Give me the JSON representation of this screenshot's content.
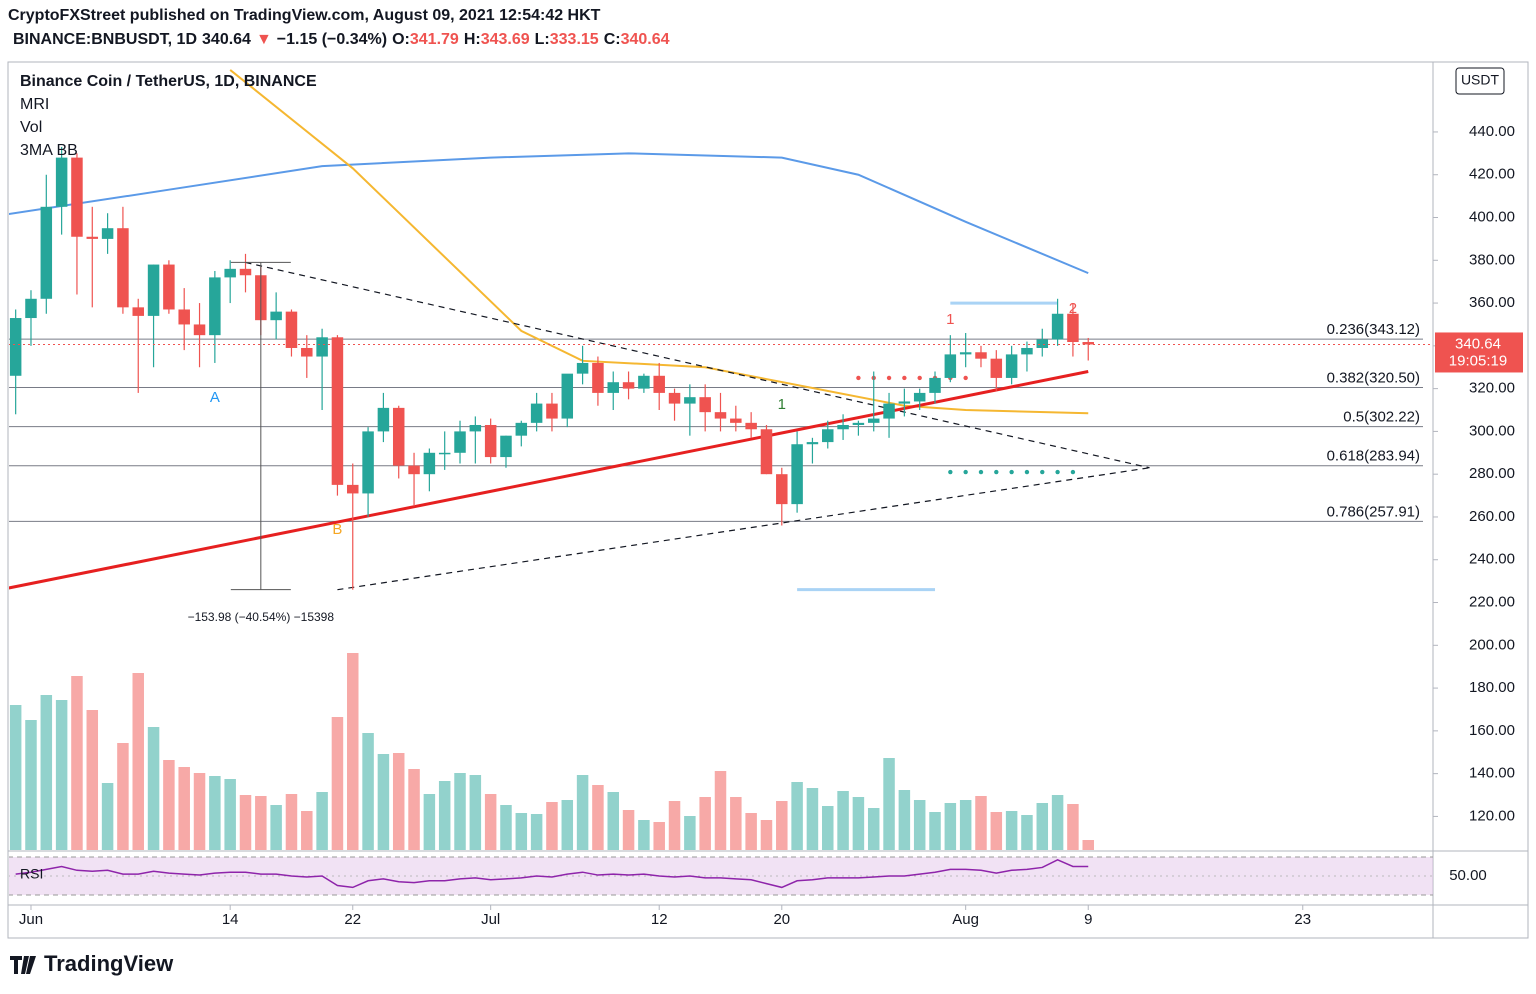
{
  "header": {
    "publisher": "CryptoFXStreet published on TradingView.com, August 09, 2021 12:54:42 HKT",
    "symbol": "BINANCE:BNBUSDT, 1D",
    "price": "340.64",
    "arrow": "▼",
    "change": "−1.15 (−0.34%)",
    "ohlc": [
      {
        "label": "O:",
        "value": "341.79"
      },
      {
        "label": "H:",
        "value": "343.69"
      },
      {
        "label": "L:",
        "value": "333.15"
      },
      {
        "label": "C:",
        "value": "340.64"
      }
    ]
  },
  "legend": [
    "Binance Coin / TetherUS, 1D, BINANCE",
    "MRI",
    "Vol",
    "3MA BB"
  ],
  "currency": "USDT",
  "last_price": {
    "value": 340.64,
    "label": "340.64",
    "countdown": "19:05:19"
  },
  "brand": "TradingView",
  "chart_data": {
    "type": "candlestick",
    "x": [
      "2021-05-31",
      "2021-06-01",
      "2021-06-02",
      "2021-06-03",
      "2021-06-04",
      "2021-06-05",
      "2021-06-06",
      "2021-06-07",
      "2021-06-08",
      "2021-06-09",
      "2021-06-10",
      "2021-06-11",
      "2021-06-12",
      "2021-06-13",
      "2021-06-14",
      "2021-06-15",
      "2021-06-16",
      "2021-06-17",
      "2021-06-18",
      "2021-06-19",
      "2021-06-20",
      "2021-06-21",
      "2021-06-22",
      "2021-06-23",
      "2021-06-24",
      "2021-06-25",
      "2021-06-26",
      "2021-06-27",
      "2021-06-28",
      "2021-06-29",
      "2021-06-30",
      "2021-07-01",
      "2021-07-02",
      "2021-07-03",
      "2021-07-04",
      "2021-07-05",
      "2021-07-06",
      "2021-07-07",
      "2021-07-08",
      "2021-07-09",
      "2021-07-10",
      "2021-07-11",
      "2021-07-12",
      "2021-07-13",
      "2021-07-14",
      "2021-07-15",
      "2021-07-16",
      "2021-07-17",
      "2021-07-18",
      "2021-07-19",
      "2021-07-20",
      "2021-07-21",
      "2021-07-22",
      "2021-07-23",
      "2021-07-24",
      "2021-07-25",
      "2021-07-26",
      "2021-07-27",
      "2021-07-28",
      "2021-07-29",
      "2021-07-30",
      "2021-07-31",
      "2021-08-01",
      "2021-08-02",
      "2021-08-03",
      "2021-08-04",
      "2021-08-05",
      "2021-08-06",
      "2021-08-07",
      "2021-08-08",
      "2021-08-09"
    ],
    "open": [
      326,
      353,
      362,
      405,
      428,
      391,
      390,
      395,
      358,
      354,
      378,
      357,
      350,
      345,
      372,
      376,
      373,
      352,
      356,
      339,
      335,
      344,
      275,
      271,
      300,
      311,
      284,
      280,
      290,
      290,
      300,
      303,
      288,
      298,
      304,
      313,
      306,
      327,
      332,
      318,
      323,
      320,
      326,
      318,
      313,
      316,
      309,
      306,
      304,
      301,
      280,
      266,
      294,
      295,
      301,
      303,
      304,
      306,
      313,
      314,
      318,
      325,
      336,
      337,
      334,
      325,
      336,
      339,
      343,
      355,
      341.79
    ],
    "high": [
      357,
      366,
      420,
      433,
      430,
      405,
      402,
      405,
      362,
      378,
      380,
      367,
      360,
      375,
      380,
      383,
      377,
      365,
      357,
      345,
      348,
      345,
      285,
      302,
      318,
      312,
      290,
      292,
      300,
      305,
      307,
      306,
      298,
      305,
      318,
      318,
      325,
      340,
      335,
      328,
      328,
      327,
      332,
      320,
      322,
      322,
      318,
      312,
      309,
      303,
      283,
      300,
      297,
      305,
      308,
      305,
      328,
      318,
      320,
      320,
      328,
      345,
      346,
      340,
      338,
      340,
      342,
      348,
      362,
      360,
      343.69
    ],
    "low": [
      308,
      340,
      355,
      392,
      364,
      358,
      383,
      355,
      318,
      330,
      355,
      338,
      330,
      332,
      360,
      365,
      345,
      343,
      335,
      325,
      310,
      270,
      226,
      260,
      295,
      278,
      265,
      272,
      282,
      285,
      285,
      285,
      283,
      293,
      300,
      300,
      302,
      322,
      312,
      310,
      315,
      318,
      310,
      305,
      298,
      300,
      300,
      300,
      297,
      280,
      256,
      262,
      285,
      292,
      296,
      298,
      300,
      297,
      307,
      310,
      313,
      323,
      330,
      330,
      319,
      322,
      328,
      335,
      340,
      335,
      333.15
    ],
    "close": [
      353,
      362,
      405,
      428,
      391,
      390,
      395,
      358,
      354,
      378,
      357,
      350,
      345,
      372,
      376,
      373,
      352,
      356,
      339,
      335,
      344,
      275,
      271,
      300,
      311,
      284,
      280,
      290,
      290,
      300,
      303,
      288,
      298,
      304,
      313,
      306,
      327,
      332,
      318,
      323,
      320,
      326,
      318,
      313,
      316,
      309,
      306,
      304,
      301,
      280,
      266,
      294,
      295,
      301,
      303,
      304,
      306,
      313,
      314,
      318,
      325,
      336,
      337,
      334,
      325,
      336,
      339,
      343,
      355,
      341.79,
      340.64
    ],
    "volume": [
      145,
      130,
      155,
      150,
      174,
      140,
      67,
      107,
      177,
      123,
      90,
      83,
      77,
      74,
      71,
      55,
      54,
      45,
      56,
      39,
      58,
      133,
      197,
      117,
      96,
      97,
      81,
      56,
      69,
      77,
      75,
      56,
      45,
      37,
      36,
      48,
      50,
      75,
      65,
      58,
      40,
      30,
      28,
      49,
      34,
      53,
      79,
      53,
      37,
      30,
      49,
      68,
      62,
      44,
      59,
      53,
      42,
      92,
      60,
      50,
      38,
      47,
      50,
      54,
      38,
      39,
      35,
      47,
      55,
      46,
      10
    ],
    "rsi": [
      52,
      54,
      57,
      60,
      56,
      55,
      56,
      52,
      52,
      55,
      53,
      52,
      51,
      53,
      54,
      54,
      52,
      52,
      50,
      49,
      50,
      40,
      38,
      45,
      47,
      44,
      43,
      45,
      45,
      47,
      48,
      46,
      47,
      48,
      50,
      49,
      52,
      54,
      51,
      52,
      51,
      52,
      50,
      49,
      50,
      48,
      48,
      47,
      46,
      42,
      38,
      45,
      46,
      48,
      48,
      48,
      49,
      50,
      50,
      52,
      54,
      57,
      57,
      56,
      53,
      56,
      57,
      59,
      67,
      60,
      60
    ],
    "ma_blue": {
      "color": "#5b9ae8",
      "x": [
        "2021-05-30",
        "2021-06-10",
        "2021-06-20",
        "2021-07-01",
        "2021-07-10",
        "2021-07-20",
        "2021-07-25",
        "2021-08-01",
        "2021-08-09"
      ],
      "values": [
        401,
        413,
        424,
        428,
        430,
        428,
        420,
        398,
        374
      ]
    },
    "ma_yellow": {
      "color": "#f5b731",
      "x": [
        "2021-06-14",
        "2021-06-22",
        "2021-07-03",
        "2021-07-07",
        "2021-07-15",
        "2021-07-28",
        "2021-08-01",
        "2021-08-09"
      ],
      "values": [
        469,
        423,
        347,
        333,
        330,
        312,
        310,
        308.5
      ]
    },
    "trendline": {
      "color": "#e62020",
      "x": [
        "2021-05-30",
        "2021-08-09"
      ],
      "values": [
        226,
        328
      ]
    },
    "dashed": [
      {
        "x": [
          "2021-06-15",
          "2021-08-13"
        ],
        "values": [
          379,
          283
        ]
      },
      {
        "x": [
          "2021-06-21",
          "2021-08-13"
        ],
        "values": [
          226,
          283
        ]
      }
    ],
    "fib": [
      {
        "value": 343.12,
        "label": "0.236(343.12)"
      },
      {
        "value": 320.5,
        "label": "0.382(320.50)"
      },
      {
        "value": 302.22,
        "label": "0.5(302.22)"
      },
      {
        "value": 283.94,
        "label": "0.618(283.94)"
      },
      {
        "value": 257.91,
        "label": "0.786(257.91)"
      }
    ],
    "levels": [
      {
        "x": [
          "2021-07-31",
          "2021-08-07"
        ],
        "value": 360
      },
      {
        "x": [
          "2021-07-21",
          "2021-07-30"
        ],
        "value": 226
      }
    ],
    "dots": [
      {
        "color": "#ef5350",
        "x": [
          "2021-07-25",
          "2021-08-01"
        ],
        "value": 325
      },
      {
        "color": "#26a69a",
        "x": [
          "2021-07-31",
          "2021-08-08"
        ],
        "value": 281
      }
    ],
    "markers": [
      {
        "text": "A",
        "x": "2021-06-13",
        "color": "#2196f3"
      },
      {
        "text": "B",
        "x": "2021-06-21",
        "color": "#f5a623"
      },
      {
        "text": "1",
        "x": "2021-07-20",
        "color": "#2e7d32"
      },
      {
        "text": "1",
        "x": "2021-07-31",
        "color": "#ef5350"
      },
      {
        "text": "2",
        "x": "2021-08-08",
        "color": "#ef5350"
      }
    ],
    "measure": {
      "x": "2021-06-16",
      "from": 379,
      "to": 226,
      "label": "−153.98 (−40.54%) −15398"
    },
    "xlim": [
      "2021-05-30T12:00",
      "2021-08-31T12:00"
    ],
    "xticks": [
      {
        "value": "2021-06-01",
        "label": "Jun"
      },
      {
        "value": "2021-06-14",
        "label": "14"
      },
      {
        "value": "2021-06-22",
        "label": "22"
      },
      {
        "value": "2021-07-01",
        "label": "Jul"
      },
      {
        "value": "2021-07-12",
        "label": "12"
      },
      {
        "value": "2021-07-20",
        "label": "20"
      },
      {
        "value": "2021-08-01",
        "label": "Aug"
      },
      {
        "value": "2021-08-09",
        "label": "9"
      },
      {
        "value": "2021-08-23",
        "label": "23"
      }
    ],
    "ylim": [
      104.3,
      472.7
    ],
    "yticks": [
      {
        "value": 120,
        "label": "120.00"
      },
      {
        "value": 140,
        "label": "140.00"
      },
      {
        "value": 160,
        "label": "160.00"
      },
      {
        "value": 180,
        "label": "180.00"
      },
      {
        "value": 200,
        "label": "200.00"
      },
      {
        "value": 220,
        "label": "220.00"
      },
      {
        "value": 240,
        "label": "240.00"
      },
      {
        "value": 260,
        "label": "260.00"
      },
      {
        "value": 280,
        "label": "280.00"
      },
      {
        "value": 300,
        "label": "300.00"
      },
      {
        "value": 320,
        "label": "320.00"
      },
      {
        "value": 340,
        "label": "340.00"
      },
      {
        "value": 360,
        "label": "360.00"
      },
      {
        "value": 380,
        "label": "380.00"
      },
      {
        "value": 400,
        "label": "400.00"
      },
      {
        "value": 420,
        "label": "420.00"
      },
      {
        "value": 440,
        "label": "440.00"
      }
    ],
    "rsi_label": "RSI",
    "rsi_lim": [
      30,
      70
    ],
    "rsi_ticks": [
      {
        "value": 50,
        "label": "50.00"
      }
    ],
    "up_color": "#26a69a",
    "down_color": "#ef5350"
  }
}
